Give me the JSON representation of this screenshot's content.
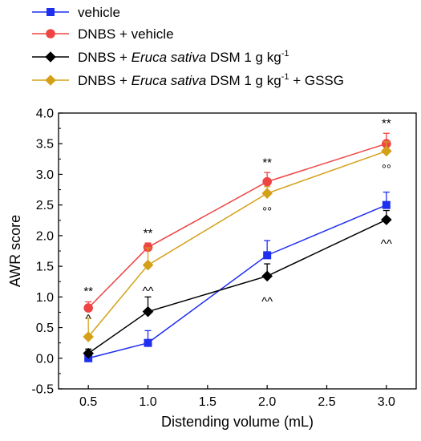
{
  "chart_data": {
    "type": "line",
    "xlabel": "Distending volume (mL)",
    "ylabel": "AWR score",
    "xlim": [
      0.25,
      3.25
    ],
    "ylim": [
      -0.5,
      4.0
    ],
    "x_ticks": [
      "0.5",
      "1.0",
      "1.5",
      "2.0",
      "2.5",
      "3.0"
    ],
    "y_ticks": [
      "-0.5",
      "0.0",
      "0.5",
      "1.0",
      "1.5",
      "2.0",
      "2.5",
      "3.0",
      "3.5",
      "4.0"
    ],
    "legend_position": "top-left",
    "series": [
      {
        "legend_parts": [
          "vehicle"
        ],
        "color": "#1f2ff0",
        "marker": "square",
        "x": [
          0.5,
          1.0,
          2.0,
          3.0
        ],
        "y": [
          0.0,
          0.25,
          1.68,
          2.5
        ],
        "err": [
          0.0,
          0.2,
          0.24,
          0.21
        ]
      },
      {
        "legend_parts": [
          "DNBS + vehicle"
        ],
        "color": "#ef4444",
        "marker": "circle",
        "x": [
          0.5,
          1.0,
          2.0,
          3.0
        ],
        "y": [
          0.82,
          1.81,
          2.88,
          3.5
        ],
        "err": [
          0.1,
          0.07,
          0.15,
          0.17
        ]
      },
      {
        "legend_parts": [
          "DNBS + ",
          "Eruca sativa",
          " DSM 1 g kg",
          "-1",
          ""
        ],
        "color": "#000000",
        "marker": "diamond",
        "x": [
          0.5,
          1.0,
          2.0,
          3.0
        ],
        "y": [
          0.08,
          0.76,
          1.34,
          2.26
        ],
        "err": [
          0.07,
          0.24,
          0.2,
          0.15
        ]
      },
      {
        "legend_parts": [
          "DNBS + ",
          "Eruca sativa",
          " DSM 1 g kg",
          "-1",
          " + GSSG"
        ],
        "color": "#d4a017",
        "marker": "diamond",
        "x": [
          0.5,
          1.0,
          2.0,
          3.0
        ],
        "y": [
          0.35,
          1.52,
          2.69,
          3.38
        ],
        "err": [
          0.3,
          0.28,
          0.11,
          0.15
        ]
      }
    ],
    "annotations": [
      {
        "text": "**",
        "x": 0.5,
        "y": 1.03,
        "anchor": "above"
      },
      {
        "text": "**",
        "x": 1.0,
        "y": 1.98,
        "anchor": "above"
      },
      {
        "text": "**",
        "x": 2.0,
        "y": 3.13,
        "anchor": "above"
      },
      {
        "text": "**",
        "x": 3.0,
        "y": 3.77,
        "anchor": "above"
      },
      {
        "text": "^",
        "x": 0.5,
        "y": 0.58,
        "anchor": "above"
      },
      {
        "text": "^^",
        "x": 1.0,
        "y": 1.03,
        "anchor": "above"
      },
      {
        "text": "^^",
        "x": 2.0,
        "y": 1.02,
        "anchor": "below"
      },
      {
        "text": "^^",
        "x": 3.0,
        "y": 1.96,
        "anchor": "below"
      },
      {
        "text": "°°",
        "x": 2.0,
        "y": 2.49,
        "anchor": "below"
      },
      {
        "text": "°°",
        "x": 3.0,
        "y": 3.18,
        "anchor": "below"
      }
    ]
  }
}
